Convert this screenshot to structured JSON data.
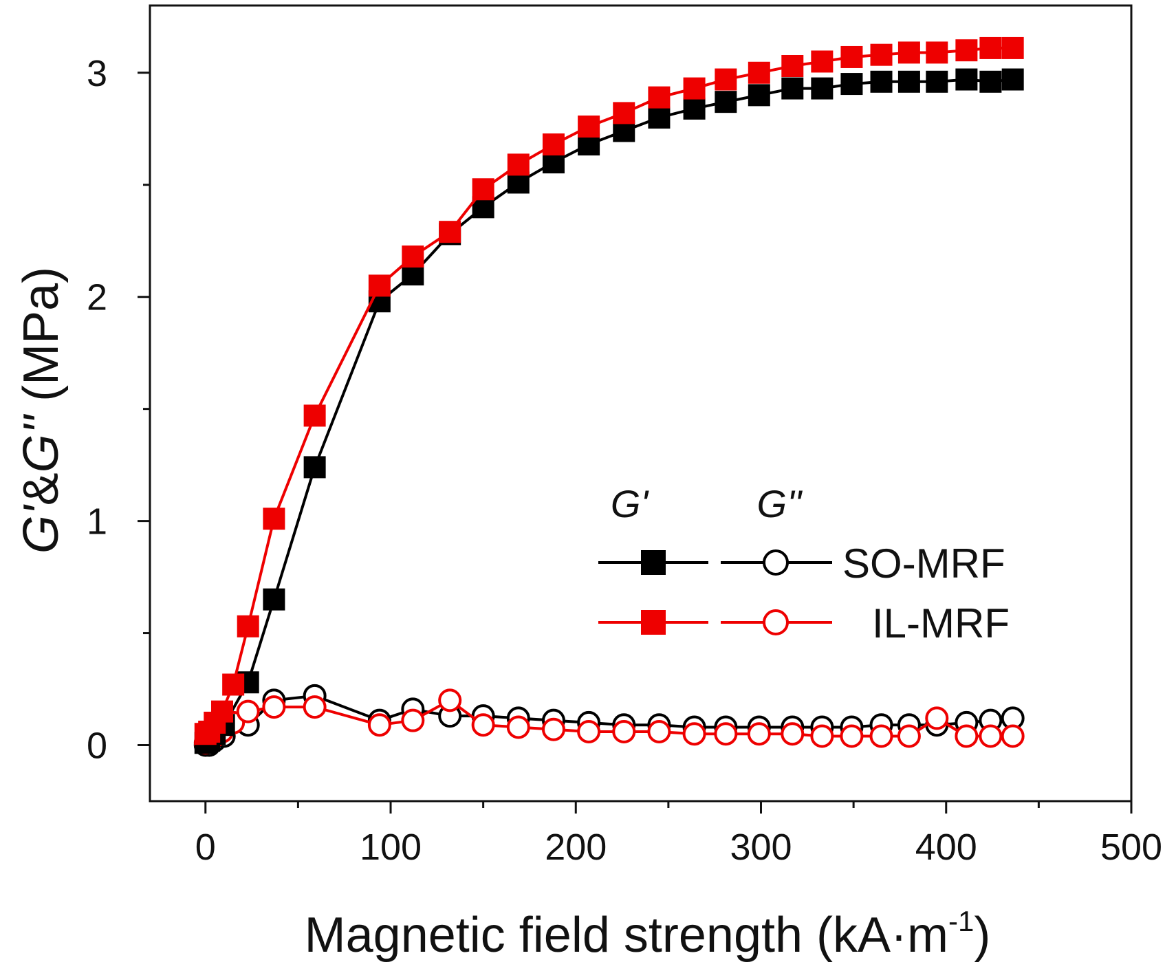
{
  "chart_data": {
    "type": "line",
    "title": "",
    "xlabel": "Magnetic field strength (kA·m",
    "xlabel_sup": "-1",
    "xlabel_close": ")",
    "ylabel_var1": "G'",
    "ylabel_amp": "&",
    "ylabel_var2": "G''",
    "ylabel_unit": " (MPa)",
    "xlim": [
      -30,
      500
    ],
    "ylim": [
      -0.25,
      3.3
    ],
    "xticks": [
      0,
      100,
      200,
      300,
      400,
      500
    ],
    "xtick_labels": [
      "0",
      "100",
      "200",
      "300",
      "400",
      "500"
    ],
    "yticks": [
      0,
      1,
      2,
      3
    ],
    "ytick_labels": [
      "0",
      "1",
      "2",
      "3"
    ],
    "grid": false,
    "legend_position": "center-right",
    "legend": {
      "column_headers": [
        "G'",
        "G''"
      ],
      "entries": [
        "SO-MRF",
        "IL-MRF"
      ]
    },
    "series": [
      {
        "name": "SO-MRF G'",
        "color": "#000000",
        "marker": "filled-square",
        "x": [
          0,
          2,
          5,
          10,
          23,
          37,
          59,
          94,
          112,
          132,
          150,
          169,
          188,
          207,
          226,
          245,
          264,
          281,
          299,
          317,
          333,
          349,
          365,
          380,
          395,
          411,
          424,
          436
        ],
        "y": [
          0.01,
          0.02,
          0.05,
          0.09,
          0.28,
          0.65,
          1.24,
          1.98,
          2.1,
          2.28,
          2.4,
          2.51,
          2.6,
          2.68,
          2.74,
          2.8,
          2.84,
          2.87,
          2.9,
          2.93,
          2.93,
          2.95,
          2.96,
          2.96,
          2.96,
          2.97,
          2.96,
          2.97
        ]
      },
      {
        "name": "SO-MRF G''",
        "color": "#000000",
        "marker": "open-circle",
        "x": [
          0,
          2,
          5,
          10,
          23,
          37,
          59,
          94,
          112,
          132,
          150,
          169,
          188,
          207,
          226,
          245,
          264,
          281,
          299,
          317,
          333,
          349,
          365,
          380,
          395,
          411,
          424,
          436
        ],
        "y": [
          0.0,
          0.0,
          0.02,
          0.04,
          0.09,
          0.2,
          0.22,
          0.11,
          0.16,
          0.13,
          0.13,
          0.12,
          0.11,
          0.1,
          0.09,
          0.09,
          0.08,
          0.08,
          0.08,
          0.08,
          0.08,
          0.08,
          0.09,
          0.09,
          0.09,
          0.1,
          0.11,
          0.12
        ]
      },
      {
        "name": "IL-MRF G'",
        "color": "#ee0000",
        "marker": "filled-square",
        "x": [
          0,
          2,
          5,
          9,
          15,
          23,
          37,
          59,
          94,
          112,
          132,
          150,
          169,
          188,
          207,
          226,
          245,
          264,
          281,
          299,
          317,
          333,
          349,
          365,
          380,
          395,
          411,
          424,
          436
        ],
        "y": [
          0.05,
          0.06,
          0.1,
          0.15,
          0.27,
          0.53,
          1.01,
          1.47,
          2.05,
          2.18,
          2.29,
          2.48,
          2.59,
          2.68,
          2.76,
          2.82,
          2.89,
          2.93,
          2.97,
          3.0,
          3.03,
          3.05,
          3.07,
          3.08,
          3.09,
          3.09,
          3.1,
          3.11,
          3.11
        ]
      },
      {
        "name": "IL-MRF G''",
        "color": "#ee0000",
        "marker": "open-circle",
        "x": [
          0,
          2,
          5,
          9,
          15,
          23,
          37,
          59,
          94,
          112,
          132,
          150,
          169,
          188,
          207,
          226,
          245,
          264,
          281,
          299,
          317,
          333,
          349,
          365,
          380,
          395,
          411,
          424,
          436
        ],
        "y": [
          0.01,
          0.02,
          0.04,
          0.06,
          0.1,
          0.15,
          0.17,
          0.17,
          0.09,
          0.11,
          0.2,
          0.09,
          0.08,
          0.07,
          0.06,
          0.06,
          0.06,
          0.05,
          0.05,
          0.05,
          0.05,
          0.04,
          0.04,
          0.04,
          0.04,
          0.12,
          0.04,
          0.04,
          0.04
        ]
      }
    ]
  }
}
